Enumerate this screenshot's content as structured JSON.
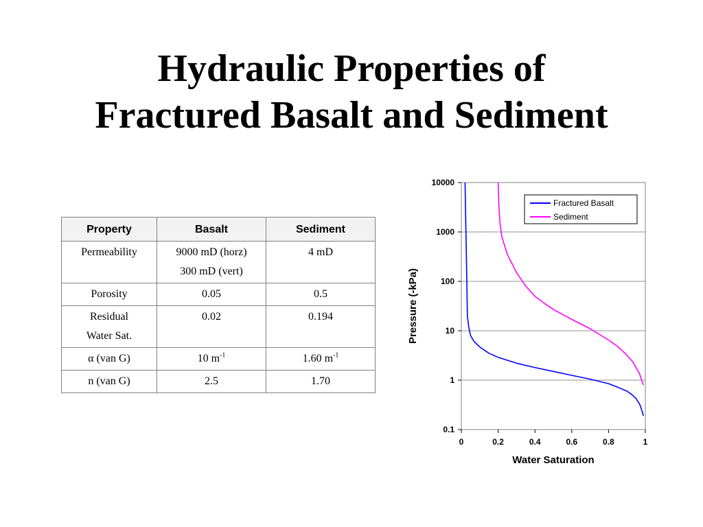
{
  "slide": {
    "title_line1": "Hydraulic Properties of",
    "title_line2": "Fractured Basalt and Sediment"
  },
  "table": {
    "headers": [
      "Property",
      "Basalt",
      "Sediment"
    ],
    "rows": [
      {
        "property": [
          "Permeability"
        ],
        "basalt": [
          "9000 mD (horz)",
          "300 mD (vert)"
        ],
        "sediment": [
          "4 mD"
        ]
      },
      {
        "property": [
          "Porosity"
        ],
        "basalt": [
          "0.05"
        ],
        "sediment": [
          "0.5"
        ]
      },
      {
        "property": [
          "Residual",
          "Water Sat."
        ],
        "basalt": [
          "0.02"
        ],
        "sediment": [
          "0.194"
        ]
      },
      {
        "property_symbol": "α",
        "property_text": " (van G)",
        "basalt_base": "10 m",
        "basalt_exp": "-1",
        "sediment_base": "1.60 m",
        "sediment_exp": "-1"
      },
      {
        "property": [
          "n (van G)"
        ],
        "basalt": [
          "2.5"
        ],
        "sediment": [
          "1.70"
        ]
      }
    ]
  },
  "chart_data": {
    "type": "line",
    "xlabel": "Water Saturation",
    "ylabel": "Pressure (-kPa)",
    "xlim": [
      0,
      1
    ],
    "ylim": [
      0.1,
      10000
    ],
    "y_scale": "log",
    "x_ticks": [
      "0",
      "0.2",
      "0.4",
      "0.6",
      "0.8",
      "1"
    ],
    "y_ticks": [
      "0.1",
      "1",
      "10",
      "100",
      "1000",
      "10000"
    ],
    "grid": "horizontal",
    "legend_position": "top-right",
    "series": [
      {
        "name": "Fractured Basalt",
        "color": "#0000ff",
        "points": [
          [
            0.02,
            10000
          ],
          [
            0.025,
            1000
          ],
          [
            0.03,
            100
          ],
          [
            0.033,
            20
          ],
          [
            0.04,
            12
          ],
          [
            0.05,
            8
          ],
          [
            0.07,
            6
          ],
          [
            0.1,
            4.7
          ],
          [
            0.15,
            3.5
          ],
          [
            0.2,
            2.9
          ],
          [
            0.3,
            2.2
          ],
          [
            0.4,
            1.8
          ],
          [
            0.5,
            1.5
          ],
          [
            0.6,
            1.25
          ],
          [
            0.7,
            1.05
          ],
          [
            0.8,
            0.85
          ],
          [
            0.85,
            0.72
          ],
          [
            0.9,
            0.6
          ],
          [
            0.93,
            0.5
          ],
          [
            0.95,
            0.42
          ],
          [
            0.97,
            0.32
          ],
          [
            0.98,
            0.25
          ],
          [
            0.99,
            0.19
          ]
        ]
      },
      {
        "name": "Sediment",
        "color": "#ff00ff",
        "points": [
          [
            0.2,
            10000
          ],
          [
            0.205,
            3000
          ],
          [
            0.21,
            1500
          ],
          [
            0.22,
            800
          ],
          [
            0.25,
            350
          ],
          [
            0.3,
            150
          ],
          [
            0.35,
            80
          ],
          [
            0.4,
            50
          ],
          [
            0.45,
            36
          ],
          [
            0.5,
            27
          ],
          [
            0.6,
            17
          ],
          [
            0.7,
            11
          ],
          [
            0.8,
            6.5
          ],
          [
            0.85,
            4.8
          ],
          [
            0.9,
            3.2
          ],
          [
            0.93,
            2.4
          ],
          [
            0.95,
            1.8
          ],
          [
            0.97,
            1.3
          ],
          [
            0.98,
            1.0
          ],
          [
            0.99,
            0.8
          ]
        ]
      }
    ]
  }
}
